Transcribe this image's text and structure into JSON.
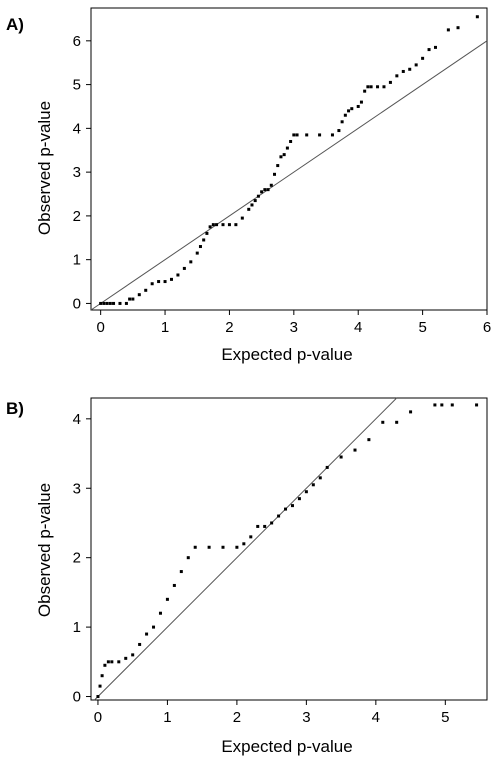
{
  "panels": [
    {
      "label": "A)",
      "xlabel": "Expected p-value",
      "ylabel": "Observed p-value",
      "xticks": [
        0,
        1,
        2,
        3,
        4,
        5,
        6
      ],
      "yticks": [
        0,
        1,
        2,
        3,
        4,
        5,
        6
      ]
    },
    {
      "label": "B)",
      "xlabel": "Expected p-value",
      "ylabel": "Observed p-value",
      "xticks": [
        0,
        1,
        2,
        3,
        4,
        5
      ],
      "yticks": [
        0,
        1,
        2,
        3,
        4
      ]
    }
  ],
  "chart_data": [
    {
      "type": "scatter",
      "title": "",
      "xlabel": "Expected p-value",
      "ylabel": "Observed p-value",
      "xlim": [
        -0.15,
        6.0
      ],
      "ylim": [
        -0.15,
        6.75
      ],
      "reference_line": {
        "slope": 1,
        "intercept": 0
      },
      "grid": false,
      "legend": "none",
      "x": [
        0.0,
        0.05,
        0.1,
        0.15,
        0.2,
        0.3,
        0.4,
        0.45,
        0.5,
        0.6,
        0.7,
        0.8,
        0.9,
        1.0,
        1.1,
        1.2,
        1.3,
        1.4,
        1.5,
        1.55,
        1.6,
        1.65,
        1.7,
        1.75,
        1.8,
        1.9,
        2.0,
        2.1,
        2.2,
        2.3,
        2.35,
        2.4,
        2.45,
        2.5,
        2.55,
        2.6,
        2.65,
        2.7,
        2.75,
        2.8,
        2.85,
        2.9,
        2.95,
        3.0,
        3.05,
        3.2,
        3.4,
        3.6,
        3.7,
        3.75,
        3.8,
        3.85,
        3.9,
        4.0,
        4.05,
        4.1,
        4.15,
        4.2,
        4.3,
        4.4,
        4.5,
        4.6,
        4.7,
        4.8,
        4.9,
        5.0,
        5.1,
        5.2,
        5.4,
        5.55,
        5.85
      ],
      "y": [
        0.0,
        0.0,
        0.0,
        0.0,
        0.0,
        0.0,
        0.0,
        0.1,
        0.1,
        0.2,
        0.3,
        0.45,
        0.5,
        0.5,
        0.55,
        0.65,
        0.8,
        0.95,
        1.15,
        1.3,
        1.45,
        1.6,
        1.75,
        1.8,
        1.8,
        1.8,
        1.8,
        1.8,
        1.95,
        2.15,
        2.25,
        2.35,
        2.45,
        2.55,
        2.6,
        2.6,
        2.7,
        2.95,
        3.15,
        3.35,
        3.4,
        3.55,
        3.7,
        3.85,
        3.85,
        3.85,
        3.85,
        3.85,
        3.95,
        4.15,
        4.3,
        4.4,
        4.45,
        4.5,
        4.6,
        4.85,
        4.95,
        4.95,
        4.95,
        4.95,
        5.05,
        5.2,
        5.3,
        5.35,
        5.45,
        5.6,
        5.8,
        5.85,
        6.25,
        6.3,
        6.55
      ]
    },
    {
      "type": "scatter",
      "title": "",
      "xlabel": "Expected p-value",
      "ylabel": "Observed p-value",
      "xlim": [
        -0.1,
        5.6
      ],
      "ylim": [
        -0.05,
        4.3
      ],
      "reference_line": {
        "slope": 1,
        "intercept": 0
      },
      "grid": false,
      "legend": "none",
      "x": [
        0.0,
        0.03,
        0.06,
        0.1,
        0.15,
        0.2,
        0.3,
        0.4,
        0.5,
        0.6,
        0.7,
        0.8,
        0.9,
        1.0,
        1.1,
        1.2,
        1.3,
        1.4,
        1.6,
        1.8,
        2.0,
        2.1,
        2.2,
        2.3,
        2.4,
        2.5,
        2.6,
        2.7,
        2.8,
        2.9,
        3.0,
        3.1,
        3.2,
        3.3,
        3.5,
        3.7,
        3.9,
        4.1,
        4.3,
        4.5,
        4.85,
        4.95,
        5.1,
        5.45
      ],
      "y": [
        0.0,
        0.15,
        0.3,
        0.45,
        0.5,
        0.5,
        0.5,
        0.55,
        0.6,
        0.75,
        0.9,
        1.0,
        1.2,
        1.4,
        1.6,
        1.8,
        2.0,
        2.15,
        2.15,
        2.15,
        2.15,
        2.2,
        2.3,
        2.45,
        2.45,
        2.5,
        2.6,
        2.7,
        2.75,
        2.85,
        2.95,
        3.05,
        3.15,
        3.3,
        3.45,
        3.55,
        3.7,
        3.95,
        3.95,
        4.1,
        4.2,
        4.2,
        4.2,
        4.2
      ]
    }
  ]
}
